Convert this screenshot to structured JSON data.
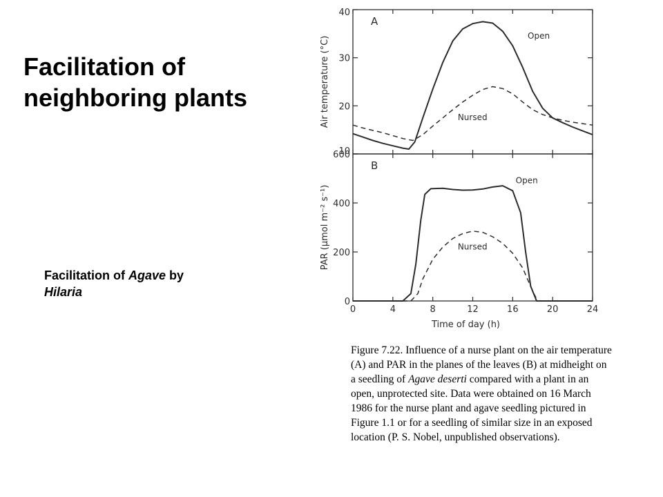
{
  "slide": {
    "title": "Facilitation of neighboring plants",
    "subtitle": {
      "prefix": "Facilitation of ",
      "genus": "Agave",
      "middle": " by ",
      "host": "Hilaria"
    }
  },
  "caption": {
    "p1": "Figure 7.22. Influence of a nurse plant on the air temperature (A) and PAR in the planes of the leaves (B) at midheight on a seedling of ",
    "species": "Agave deserti",
    "p2": " compared with a plant in an open, unprotected site. Data were obtained on 16 March 1986 for the nurse plant and agave seedling pictured in Figure 1.1 or for a seedling of similar size in an exposed location (P. S. Nobel, unpublished observations)."
  },
  "colors": {
    "ink": "#2b2b2b"
  },
  "chart_data": [
    {
      "type": "line",
      "panel": "A",
      "ylabel": "Air temperature (°C)",
      "xlim": [
        0,
        24
      ],
      "ylim": [
        10,
        40
      ],
      "yticks": [
        10,
        20,
        30,
        40
      ],
      "series": [
        {
          "name": "Open",
          "style": "solid",
          "x": [
            0,
            1,
            2,
            3,
            4,
            5,
            5.6,
            6.2,
            7,
            8,
            9,
            10,
            11,
            12,
            13,
            14,
            15,
            16,
            17,
            18,
            19,
            20,
            21,
            22,
            23,
            24
          ],
          "y": [
            14.2,
            13.5,
            12.8,
            12.2,
            11.7,
            11.2,
            11.0,
            12.5,
            17.5,
            23.5,
            29,
            33.5,
            36,
            37.1,
            37.5,
            37.2,
            35.5,
            32.5,
            28,
            23,
            19.5,
            17.5,
            16.5,
            15.6,
            14.8,
            14.0
          ]
        },
        {
          "name": "Nursed",
          "style": "dashed",
          "x": [
            0,
            1,
            2,
            3,
            4,
            5,
            6,
            7,
            8,
            9,
            10,
            11,
            12,
            13,
            14,
            15,
            16,
            17,
            18,
            19,
            20,
            21,
            22,
            23,
            24
          ],
          "y": [
            16.0,
            15.4,
            14.9,
            14.4,
            13.8,
            13.2,
            12.8,
            14.0,
            15.8,
            17.5,
            19.2,
            20.8,
            22.2,
            23.4,
            24.0,
            23.6,
            22.5,
            20.8,
            19.2,
            18.2,
            17.5,
            17.0,
            16.6,
            16.3,
            16.0
          ]
        }
      ]
    },
    {
      "type": "line",
      "panel": "B",
      "ylabel": "PAR (µmol m⁻² s⁻¹)",
      "xlabel": "Time of day (h)",
      "xlim": [
        0,
        24
      ],
      "ylim": [
        0,
        600
      ],
      "xticks": [
        0,
        4,
        8,
        12,
        16,
        20,
        24
      ],
      "yticks": [
        0,
        200,
        400,
        600
      ],
      "series": [
        {
          "name": "Open",
          "style": "solid",
          "x": [
            0,
            5.0,
            5.8,
            6.3,
            6.8,
            7.2,
            7.8,
            9,
            10,
            11,
            12,
            13,
            14,
            15,
            16,
            16.8,
            17.3,
            17.8,
            18.4,
            24
          ],
          "y": [
            0,
            0,
            30,
            150,
            330,
            435,
            458,
            460,
            455,
            452,
            453,
            457,
            465,
            470,
            450,
            360,
            200,
            60,
            0,
            0
          ]
        },
        {
          "name": "Nursed",
          "style": "dashed",
          "x": [
            0,
            5.8,
            6.5,
            7,
            8,
            9,
            10,
            11,
            12,
            13,
            14,
            15,
            16,
            17,
            18,
            18.5,
            24
          ],
          "y": [
            0,
            0,
            30,
            90,
            170,
            220,
            255,
            275,
            285,
            280,
            262,
            235,
            195,
            135,
            40,
            0,
            0
          ]
        }
      ]
    }
  ]
}
